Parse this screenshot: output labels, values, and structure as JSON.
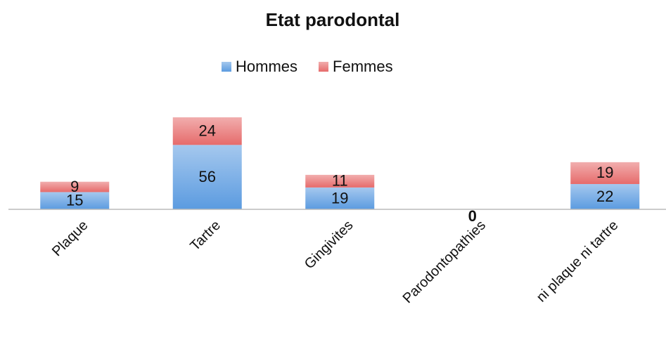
{
  "chart_data": {
    "type": "stacked_bar",
    "title": "Etat parodontal",
    "categories": [
      "Plaque",
      "Tartre",
      "Gingivites",
      "Parodontopathies",
      "ni plaque ni tartre"
    ],
    "series": [
      {
        "name": "Hommes",
        "color": "#5b9be0",
        "values": [
          15,
          56,
          19,
          0,
          22
        ]
      },
      {
        "name": "Femmes",
        "color": "#e66b6b",
        "values": [
          9,
          24,
          11,
          0,
          19
        ]
      }
    ],
    "ylim": [
      0,
      80
    ],
    "legend": "top"
  }
}
